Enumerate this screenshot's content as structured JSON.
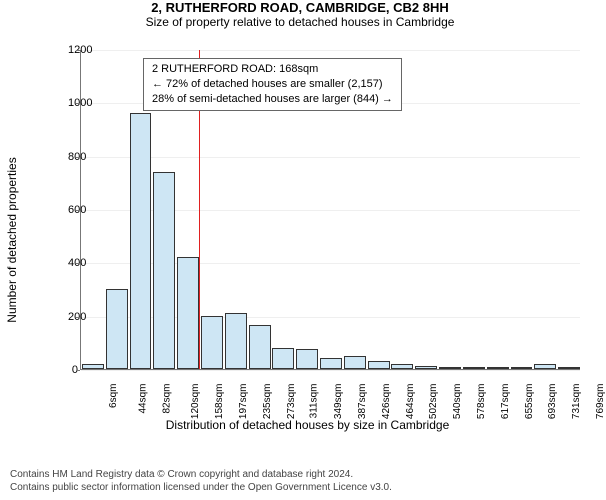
{
  "title": "2, RUTHERFORD ROAD, CAMBRIDGE, CB2 8HH",
  "subtitle": "Size of property relative to detached houses in Cambridge",
  "chart": {
    "type": "histogram",
    "ylabel": "Number of detached properties",
    "xlabel": "Distribution of detached houses by size in Cambridge",
    "yticks": [
      0,
      200,
      400,
      600,
      800,
      1000,
      1200
    ],
    "ylim": [
      0,
      1200
    ],
    "bar_fill": "#cee6f4",
    "bar_stroke": "#333333",
    "grid_color": "#bfbfbf",
    "x_categories": [
      "6sqm",
      "44sqm",
      "82sqm",
      "120sqm",
      "158sqm",
      "197sqm",
      "235sqm",
      "273sqm",
      "311sqm",
      "349sqm",
      "387sqm",
      "426sqm",
      "464sqm",
      "502sqm",
      "540sqm",
      "578sqm",
      "617sqm",
      "655sqm",
      "693sqm",
      "731sqm",
      "769sqm"
    ],
    "values": [
      20,
      300,
      960,
      740,
      420,
      200,
      210,
      165,
      80,
      75,
      40,
      50,
      30,
      20,
      10,
      5,
      5,
      5,
      5,
      20,
      5
    ],
    "vline_color": "#e02020",
    "vline_after_index": 4,
    "annotation": {
      "line1": "2 RUTHERFORD ROAD: 168sqm",
      "line2": "← 72% of detached houses are smaller (2,157)",
      "line3": "28% of semi-detached houses are larger (844) →"
    }
  },
  "footer": {
    "line1": "Contains HM Land Registry data © Crown copyright and database right 2024.",
    "line2": "Contains public sector information licensed under the Open Government Licence v3.0."
  }
}
